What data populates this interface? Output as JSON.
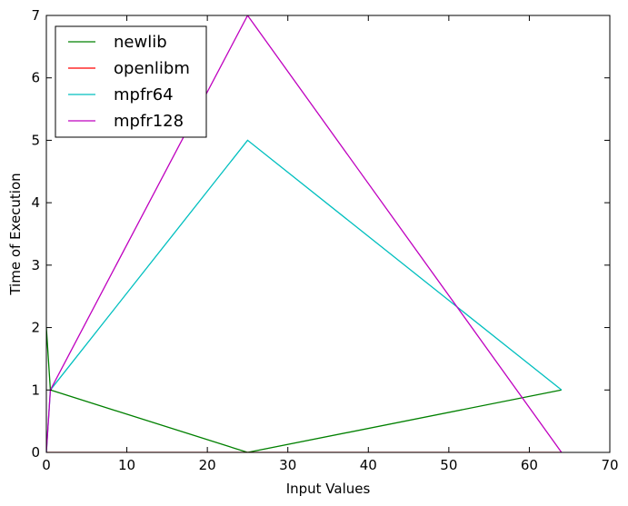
{
  "chart_data": {
    "type": "line",
    "xlabel": "Input Values",
    "ylabel": "Time of Execution",
    "xlim": [
      0,
      70
    ],
    "ylim": [
      0,
      7
    ],
    "xticks": [
      0,
      10,
      20,
      30,
      40,
      50,
      60,
      70
    ],
    "yticks": [
      0,
      1,
      2,
      3,
      4,
      5,
      6,
      7
    ],
    "xtick_labels": [
      "0",
      "10",
      "20",
      "30",
      "40",
      "50",
      "60",
      "70"
    ],
    "ytick_labels": [
      "0",
      "1",
      "2",
      "3",
      "4",
      "5",
      "6",
      "7"
    ],
    "grid": false,
    "legend_position": "top-left",
    "series": [
      {
        "name": "newlib",
        "color": "#008000",
        "x": [
          0,
          0.5,
          25,
          64
        ],
        "y": [
          2,
          1,
          0,
          1
        ]
      },
      {
        "name": "openlibm",
        "color": "#ff0000",
        "x": [
          0,
          0.5,
          25,
          64
        ],
        "y": [
          0,
          0,
          0,
          0
        ]
      },
      {
        "name": "mpfr64",
        "color": "#00bfbf",
        "x": [
          0,
          0.5,
          25,
          64
        ],
        "y": [
          0,
          1,
          5,
          1
        ]
      },
      {
        "name": "mpfr128",
        "color": "#bf00bf",
        "x": [
          0,
          0.5,
          25,
          64
        ],
        "y": [
          0,
          1,
          7,
          0
        ]
      }
    ]
  }
}
